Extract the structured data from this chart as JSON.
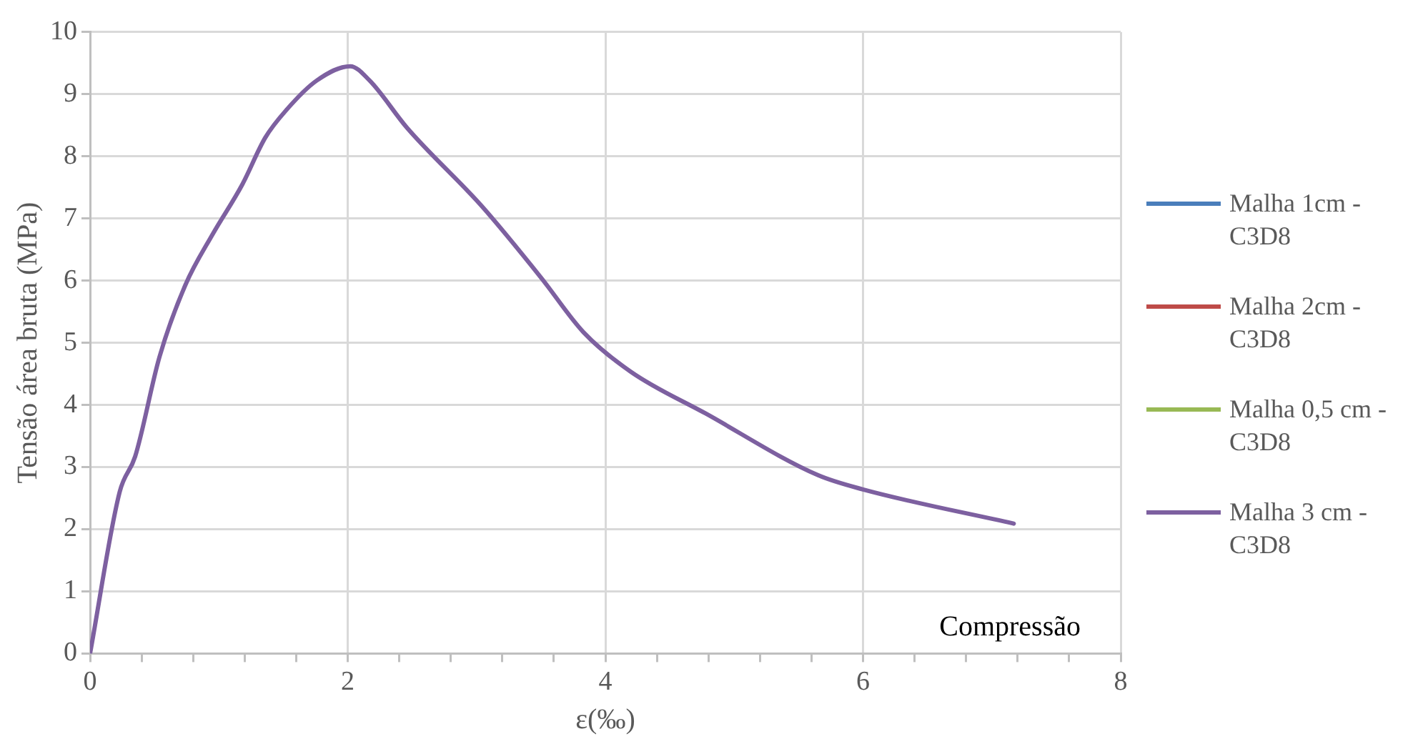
{
  "chart_data": {
    "type": "line",
    "xlabel": "ε(‰)",
    "ylabel": "Tensão área bruta (MPa)",
    "annotations": [
      "Compressão"
    ],
    "xlim": [
      0,
      8
    ],
    "ylim": [
      0,
      10
    ],
    "xticks": [
      0,
      {
        "value": 0.4,
        "label": null
      },
      {
        "value": 0.8,
        "label": null
      },
      {
        "value": 1.2,
        "label": null
      },
      {
        "value": 1.6,
        "label": null
      },
      2,
      {
        "value": 2.4,
        "label": null
      },
      {
        "value": 2.8,
        "label": null
      },
      {
        "value": 3.2,
        "label": null
      },
      {
        "value": 3.6,
        "label": null
      },
      4,
      {
        "value": 4.4,
        "label": null
      },
      {
        "value": 4.8,
        "label": null
      },
      {
        "value": 5.2,
        "label": null
      },
      {
        "value": 5.6,
        "label": null
      },
      6,
      {
        "value": 6.4,
        "label": null
      },
      {
        "value": 6.8,
        "label": null
      },
      {
        "value": 7.2,
        "label": null
      },
      {
        "value": 7.6,
        "label": null
      },
      8
    ],
    "yticks": [
      0,
      1,
      2,
      3,
      4,
      5,
      6,
      7,
      8,
      9,
      10
    ],
    "grid": true,
    "legend": "right",
    "marker": "none",
    "line_style": "solid",
    "x": [
      0,
      0.23,
      0.35,
      0.54,
      0.74,
      0.95,
      1.18,
      1.36,
      1.53,
      1.76,
      2.02,
      2.17,
      2.46,
      3.04,
      3.5,
      3.83,
      4.2,
      4.78,
      5.65,
      6.0,
      7.17
    ],
    "series": [
      {
        "name": "Malha 1cm - C3D8",
        "color": "#4a7ebb",
        "values": [
          null,
          null,
          null,
          null,
          null,
          null,
          null,
          null,
          null,
          null,
          null,
          null,
          null,
          null,
          null,
          null,
          null,
          null,
          null,
          null,
          null
        ]
      },
      {
        "name": "Malha 2cm - C3D8",
        "color": "#be4b48",
        "values": [
          null,
          null,
          null,
          null,
          null,
          null,
          null,
          null,
          null,
          null,
          null,
          null,
          null,
          null,
          null,
          null,
          null,
          null,
          null,
          null,
          null
        ]
      },
      {
        "name": "Malha 0,5 cm - C3D8",
        "color": "#98b954",
        "values": [
          null,
          null,
          null,
          null,
          null,
          null,
          null,
          null,
          null,
          null,
          null,
          null,
          null,
          null,
          null,
          null,
          null,
          null,
          null,
          null,
          null
        ]
      },
      {
        "name": "Malha 3 cm - C3D8",
        "color": "#7d60a0",
        "values": [
          0,
          2.6,
          3.17,
          4.78,
          5.93,
          6.74,
          7.54,
          8.3,
          8.76,
          9.22,
          9.45,
          9.22,
          8.46,
          7.2,
          6.05,
          5.17,
          4.53,
          3.86,
          2.87,
          2.64,
          2.09
        ]
      }
    ]
  }
}
